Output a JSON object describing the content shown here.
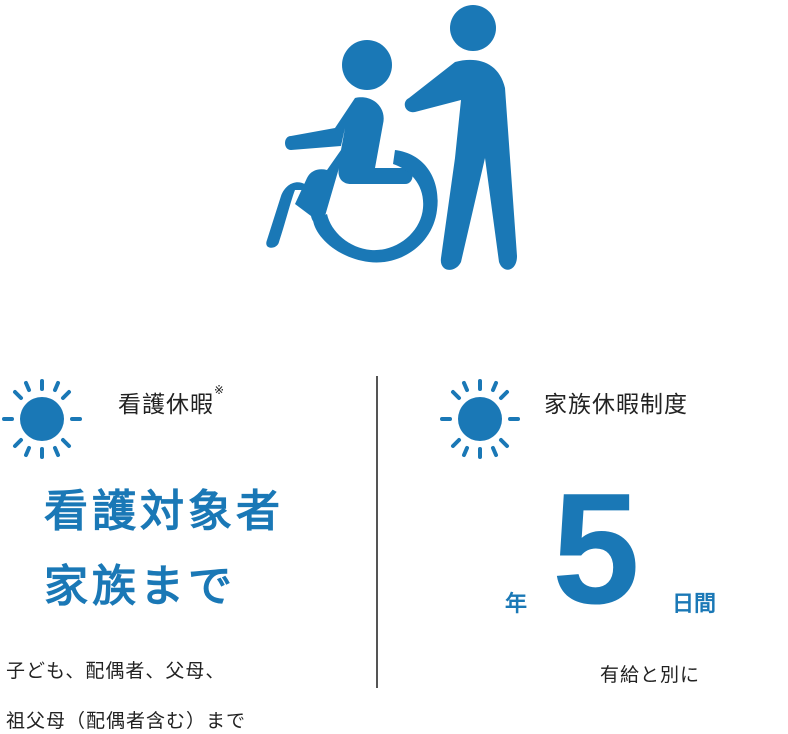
{
  "hero_icon": "wheelchair-caregiver-icon",
  "accent_color": "#1a78b6",
  "left": {
    "icon": "sun-icon",
    "title": "看護休暇",
    "title_mark": "※",
    "headline_line1": "看護対象者",
    "headline_line2": "家族まで",
    "note_line1": "子ども、配偶者、父母、",
    "note_line2": "祖父母（配偶者含む）まで"
  },
  "right": {
    "icon": "sun-icon",
    "title": "家族休暇制度",
    "prefix": "年",
    "number": "5",
    "suffix": "日間",
    "note": "有給と別に"
  }
}
